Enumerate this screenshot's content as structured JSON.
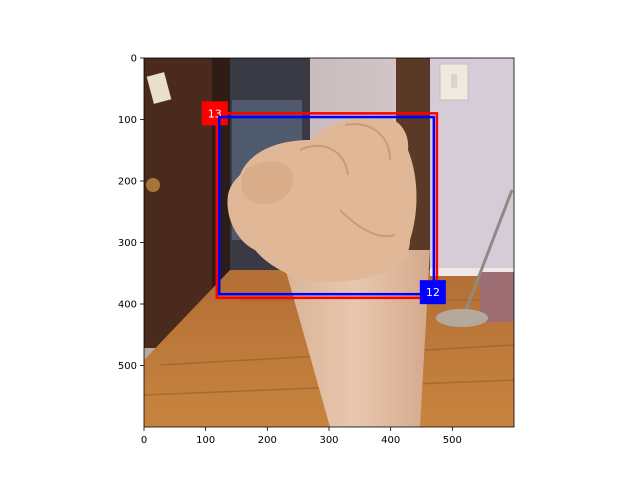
{
  "figure": {
    "x_ticks": [
      "0",
      "100",
      "200",
      "300",
      "400",
      "500"
    ],
    "y_ticks": [
      "0",
      "100",
      "200",
      "300",
      "400",
      "500"
    ],
    "x_tick_values": [
      0,
      100,
      200,
      300,
      400,
      500
    ],
    "y_tick_values": [
      0,
      100,
      200,
      300,
      400,
      500
    ],
    "image_extent": {
      "width": 600,
      "height": 600
    },
    "image_description_icon": "fist-photo-icon"
  },
  "boxes": [
    {
      "label": "13",
      "color": "#ff0000",
      "x_min": 118,
      "y_min": 90,
      "x_max": 475,
      "y_max": 390,
      "label_corner": "top-left"
    },
    {
      "label": "12",
      "color": "#0000ff",
      "x_min": 122,
      "y_min": 96,
      "x_max": 470,
      "y_max": 384,
      "label_corner": "bottom-right"
    }
  ]
}
